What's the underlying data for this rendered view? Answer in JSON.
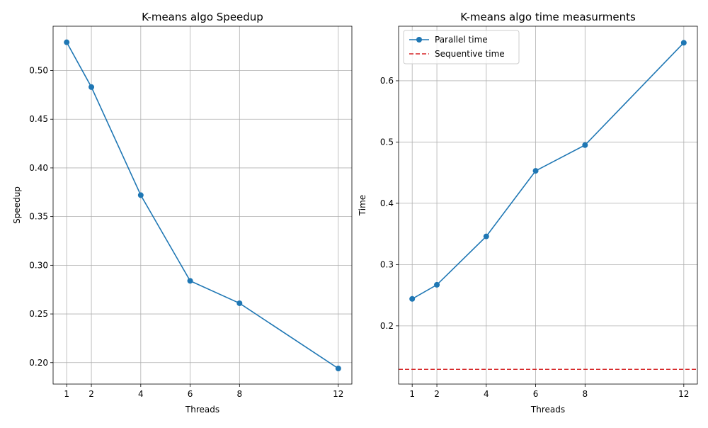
{
  "chart_data": [
    {
      "type": "line",
      "title": "K-means algo Speedup",
      "xlabel": "Threads",
      "ylabel": "Speedup",
      "x": [
        1,
        2,
        4,
        6,
        8,
        12
      ],
      "xticks": [
        "1",
        "2",
        "4",
        "6",
        "8",
        "12"
      ],
      "yticks": [
        "0.20",
        "0.25",
        "0.30",
        "0.35",
        "0.40",
        "0.45",
        "0.50"
      ],
      "xlim": [
        0.45,
        12.55
      ],
      "ylim": [
        0.178,
        0.5455
      ],
      "grid": true,
      "legend": null,
      "series": [
        {
          "values": [
            0.529,
            0.483,
            0.372,
            0.284,
            0.261,
            0.194
          ],
          "color": "#1f77b4",
          "marker": "circle",
          "line_style": "solid"
        }
      ]
    },
    {
      "type": "line",
      "title": "K-means algo time measurments",
      "xlabel": "Threads",
      "ylabel": "Time",
      "x": [
        1,
        2,
        4,
        6,
        8,
        12
      ],
      "xticks": [
        "1",
        "2",
        "4",
        "6",
        "8",
        "12"
      ],
      "yticks": [
        "0.2",
        "0.3",
        "0.4",
        "0.5",
        "0.6"
      ],
      "xlim": [
        0.45,
        12.55
      ],
      "ylim": [
        0.105,
        0.689
      ],
      "grid": true,
      "legend": "top-left",
      "series": [
        {
          "name": "Parallel time",
          "values": [
            0.244,
            0.267,
            0.346,
            0.453,
            0.495,
            0.662
          ],
          "color": "#1f77b4",
          "marker": "circle",
          "line_style": "solid"
        },
        {
          "name": "Sequentive time",
          "hline": 0.129,
          "color": "#d62728",
          "line_style": "dashed"
        }
      ]
    }
  ]
}
